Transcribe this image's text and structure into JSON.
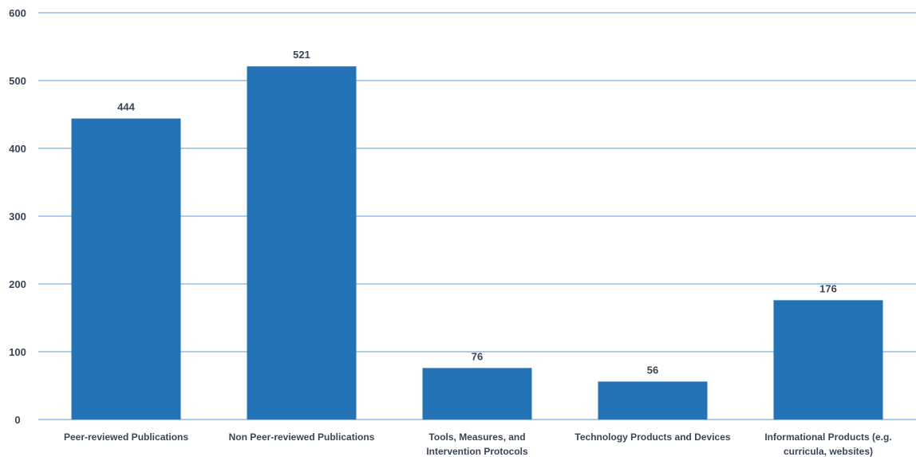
{
  "chart_data": {
    "type": "bar",
    "title": "",
    "xlabel": "",
    "ylabel": "",
    "ylim": [
      0,
      600
    ],
    "y_ticks": [
      "0",
      "100",
      "200",
      "300",
      "400",
      "500",
      "600"
    ],
    "y_tick_values": [
      0,
      100,
      200,
      300,
      400,
      500,
      600
    ],
    "grid": true,
    "legend": "none",
    "categories": [
      [
        "Peer-reviewed Publications"
      ],
      [
        "Non Peer-reviewed Publications"
      ],
      [
        "Tools, Measures, and",
        "Intervention  Protocols"
      ],
      [
        "Technology Products and Devices"
      ],
      [
        "Informational Products (e.g.",
        "curricula, websites)"
      ]
    ],
    "values": [
      444,
      521,
      76,
      56,
      176
    ],
    "data_labels": [
      "444",
      "521",
      "76",
      "56",
      "176"
    ],
    "colors": {
      "bar": "#2473b6",
      "grid": "#5b9bd5",
      "text": "#3a4556"
    }
  }
}
